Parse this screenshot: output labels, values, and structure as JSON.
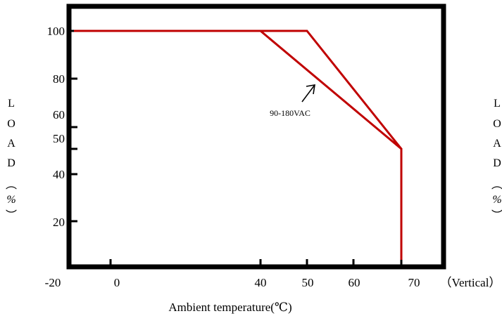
{
  "chart_data": {
    "type": "line",
    "title": "",
    "xlabel": "Ambient temperature(℃)",
    "x_suffix": "（Vertical）",
    "ylabel": "LOAD（%）",
    "ylabel_chars": [
      "L",
      "O",
      "A",
      "D",
      "︵",
      "%",
      "︶"
    ],
    "x_ticks": [
      "-20",
      "0",
      "40",
      "50",
      "60",
      "70"
    ],
    "y_ticks": [
      "100",
      "80",
      "60",
      "50",
      "40",
      "20"
    ],
    "grid": false,
    "line_color": "#c00000",
    "series": [
      {
        "values": [
          [
            -30,
            100
          ],
          [
            50,
            100
          ],
          [
            70,
            50
          ],
          [
            70,
            0
          ]
        ]
      },
      {
        "values": [
          [
            -30,
            100
          ],
          [
            40,
            100
          ],
          [
            70,
            50
          ],
          [
            70,
            0
          ]
        ]
      }
    ],
    "annotations": [
      {
        "text": "90-180VAC"
      }
    ]
  }
}
